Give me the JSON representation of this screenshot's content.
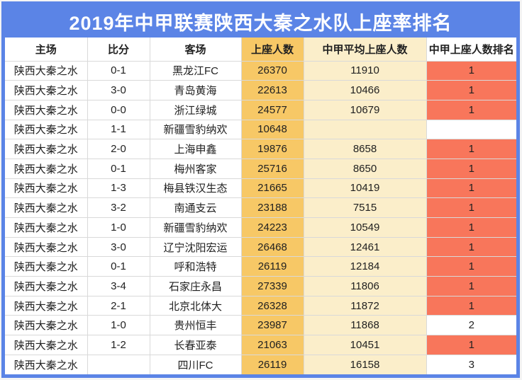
{
  "title": "2019年中甲联赛陕西大秦之水队上座率排名",
  "colors": {
    "blue": "#5b84e6",
    "gold": "#f7c866",
    "cream": "#fbeeca",
    "salmon": "#f8765b",
    "grid": "#d9d9d9",
    "text": "#212121",
    "title_text": "#ffffff"
  },
  "chart_data": {
    "type": "table",
    "title": "2019年中甲联赛陕西大秦之水队上座率排名",
    "columns": [
      "主场",
      "比分",
      "客场",
      "上座人数",
      "中甲平均上座人数",
      "中甲上座人数排名"
    ],
    "highlight_rule": "rank value 1 shown on salmon background; attendance column gold; league-average column cream",
    "rows": [
      [
        "陕西大秦之水",
        "0-1",
        "黑龙江FC",
        "26370",
        "11910",
        "1"
      ],
      [
        "陕西大秦之水",
        "3-0",
        "青岛黄海",
        "22613",
        "10466",
        "1"
      ],
      [
        "陕西大秦之水",
        "0-0",
        "浙江绿城",
        "24577",
        "10679",
        "1"
      ],
      [
        "陕西大秦之水",
        "1-1",
        "新疆雪豹纳欢",
        "10648",
        "",
        ""
      ],
      [
        "陕西大秦之水",
        "2-0",
        "上海申鑫",
        "19876",
        "8658",
        "1"
      ],
      [
        "陕西大秦之水",
        "0-1",
        "梅州客家",
        "25716",
        "8650",
        "1"
      ],
      [
        "陕西大秦之水",
        "1-3",
        "梅县铁汉生态",
        "21665",
        "10419",
        "1"
      ],
      [
        "陕西大秦之水",
        "3-2",
        "南通支云",
        "23188",
        "7515",
        "1"
      ],
      [
        "陕西大秦之水",
        "1-0",
        "新疆雪豹纳欢",
        "24223",
        "10549",
        "1"
      ],
      [
        "陕西大秦之水",
        "3-0",
        "辽宁沈阳宏运",
        "26468",
        "12461",
        "1"
      ],
      [
        "陕西大秦之水",
        "0-1",
        "呼和浩特",
        "26119",
        "12184",
        "1"
      ],
      [
        "陕西大秦之水",
        "3-4",
        "石家庄永昌",
        "27339",
        "11806",
        "1"
      ],
      [
        "陕西大秦之水",
        "2-1",
        "北京北体大",
        "26328",
        "11872",
        "1"
      ],
      [
        "陕西大秦之水",
        "1-0",
        "贵州恒丰",
        "23987",
        "11868",
        "2"
      ],
      [
        "陕西大秦之水",
        "1-2",
        "长春亚泰",
        "21063",
        "10451",
        "1"
      ],
      [
        "陕西大秦之水",
        "",
        "四川FC",
        "26119",
        "16158",
        "3"
      ]
    ]
  }
}
